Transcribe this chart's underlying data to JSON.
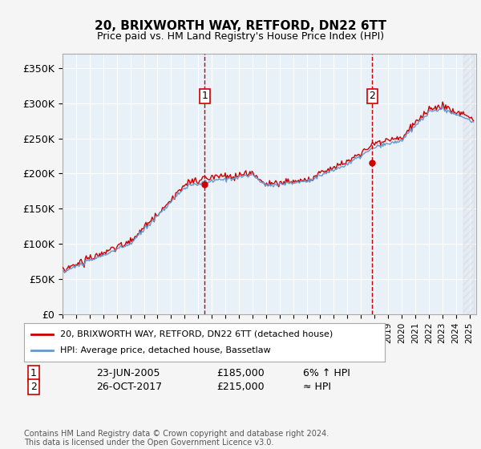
{
  "title": "20, BRIXWORTH WAY, RETFORD, DN22 6TT",
  "subtitle": "Price paid vs. HM Land Registry's House Price Index (HPI)",
  "ylabel_ticks": [
    "£0",
    "£50K",
    "£100K",
    "£150K",
    "£200K",
    "£250K",
    "£300K",
    "£350K"
  ],
  "ytick_values": [
    0,
    50000,
    100000,
    150000,
    200000,
    250000,
    300000,
    350000
  ],
  "ylim": [
    0,
    370000
  ],
  "xlim_start": 1995.0,
  "xlim_end": 2025.5,
  "bg_color": "#ddeeff",
  "plot_bg": "#e8f0f8",
  "hatch_color": "#c0c8d8",
  "sale1_date": 2005.47,
  "sale1_price": 185000,
  "sale1_label": "1",
  "sale2_date": 2017.82,
  "sale2_price": 215000,
  "sale2_label": "2",
  "line1_color": "#cc0000",
  "line2_color": "#6699cc",
  "legend1": "20, BRIXWORTH WAY, RETFORD, DN22 6TT (detached house)",
  "legend2": "HPI: Average price, detached house, Bassetlaw",
  "footer": "Contains HM Land Registry data © Crown copyright and database right 2024.\nThis data is licensed under the Open Government Licence v3.0.",
  "table_row1": [
    "1",
    "23-JUN-2005",
    "£185,000",
    "6% ↑ HPI"
  ],
  "table_row2": [
    "2",
    "26-OCT-2017",
    "£215,000",
    "≈ HPI"
  ]
}
